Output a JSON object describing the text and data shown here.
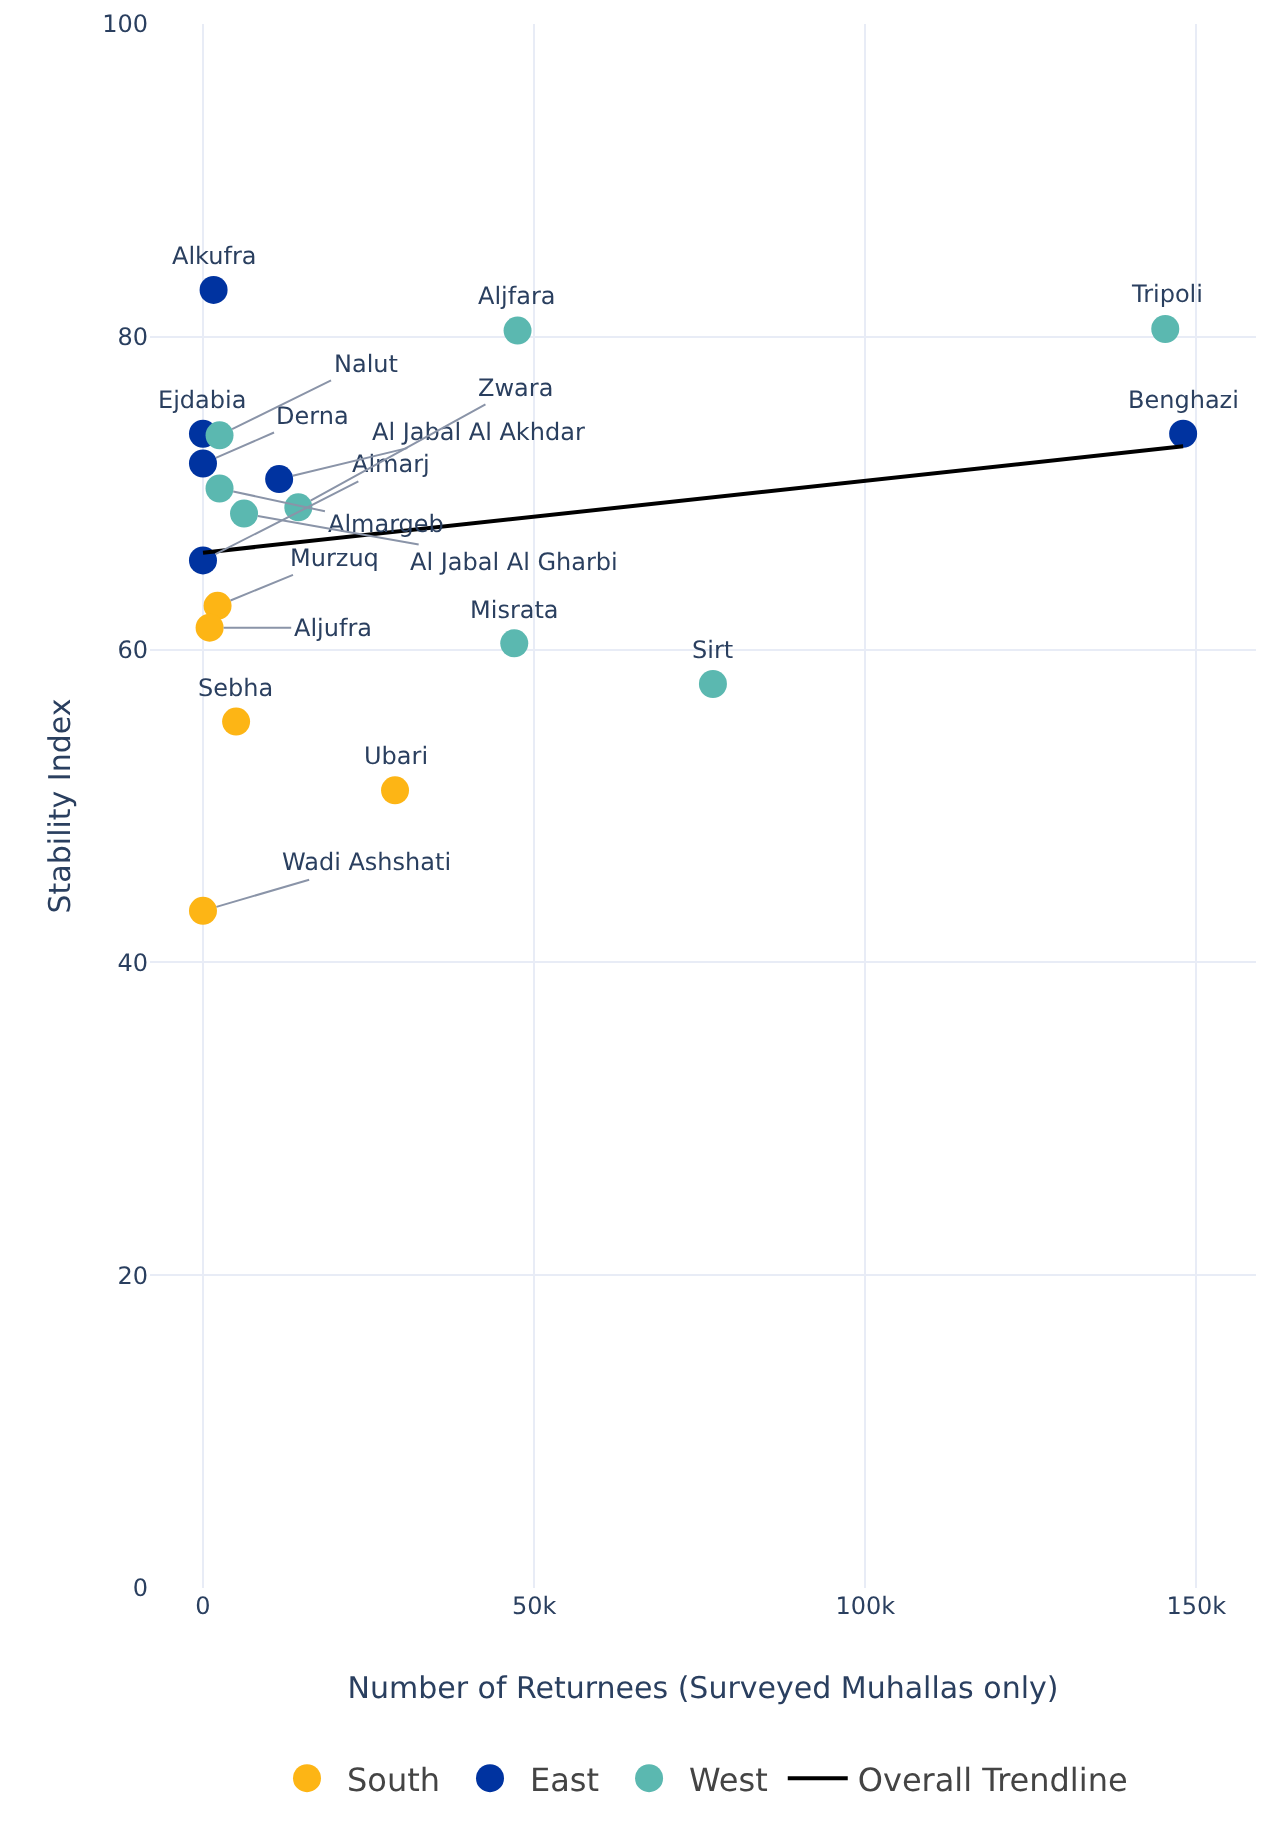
{
  "chart_data": {
    "type": "scatter",
    "xlabel": "Number of Returnees (Surveyed Muhallas only)",
    "ylabel": "Stability Index",
    "xlim": [
      -8000,
      159000
    ],
    "xticks": [
      {
        "value": 0,
        "label": "0"
      },
      {
        "value": 50000,
        "label": "50k"
      },
      {
        "value": 100000,
        "label": "100k"
      },
      {
        "value": 150000,
        "label": "150k"
      }
    ],
    "ylim": [
      0,
      100
    ],
    "yticks": [
      0,
      20,
      40,
      60,
      80,
      100
    ],
    "grid": true,
    "legend": "bottom",
    "marker": "circle",
    "series": [
      {
        "name": "South",
        "color": "#fdb515",
        "x": [
          2200,
          1000,
          5000,
          29000,
          0
        ],
        "values": [
          62.8,
          61.4,
          55.4,
          51.0,
          43.3
        ]
      },
      {
        "name": "East",
        "color": "#0033a0",
        "x": [
          1600,
          148000,
          0,
          0,
          0,
          11500
        ],
        "values": [
          83.0,
          73.8,
          65.7,
          73.8,
          71.9,
          70.9
        ]
      },
      {
        "name": "West",
        "color": "#5bb8b0",
        "x": [
          47500,
          145300,
          47000,
          77000,
          2500,
          2500,
          6200,
          14400
        ],
        "values": [
          80.4,
          80.5,
          60.4,
          57.8,
          73.7,
          70.3,
          68.7,
          69.1
        ]
      },
      {
        "name": "Overall Trendline",
        "type": "line",
        "color": "#000000",
        "marker": "none",
        "x": [
          0,
          148000
        ],
        "values": [
          66.2,
          73.0
        ]
      }
    ],
    "annotations": [
      {
        "text": "Murzuq",
        "x": 2200,
        "y": 62.8
      },
      {
        "text": "Aljufra",
        "x": 1000,
        "y": 61.4
      },
      {
        "text": "Sebha",
        "x": 5000,
        "y": 55.4
      },
      {
        "text": "Ubari",
        "x": 29000,
        "y": 51.0
      },
      {
        "text": "Wadi Ashshati",
        "x": 0,
        "y": 43.3
      },
      {
        "text": "Alkufra",
        "x": 1600,
        "y": 83.0
      },
      {
        "text": "Benghazi",
        "x": 148000,
        "y": 73.8
      },
      {
        "text": "Almarj",
        "x": 0,
        "y": 65.7
      },
      {
        "text": "Ejdabia",
        "x": 0,
        "y": 73.8
      },
      {
        "text": "Derna",
        "x": 0,
        "y": 71.9
      },
      {
        "text": "Al Jabal Al Akhdar",
        "x": 11500,
        "y": 70.9
      },
      {
        "text": "Aljfara",
        "x": 47500,
        "y": 80.4
      },
      {
        "text": "Tripoli",
        "x": 145300,
        "y": 80.5
      },
      {
        "text": "Misrata",
        "x": 47000,
        "y": 60.4
      },
      {
        "text": "Sirt",
        "x": 77000,
        "y": 57.8
      },
      {
        "text": "Nalut",
        "x": 2500,
        "y": 73.7
      },
      {
        "text": "Almargeb",
        "x": 2500,
        "y": 70.3
      },
      {
        "text": "Al Jabal Al Gharbi",
        "x": 6200,
        "y": 68.7
      },
      {
        "text": "Zwara",
        "x": 14400,
        "y": 69.1
      }
    ]
  }
}
